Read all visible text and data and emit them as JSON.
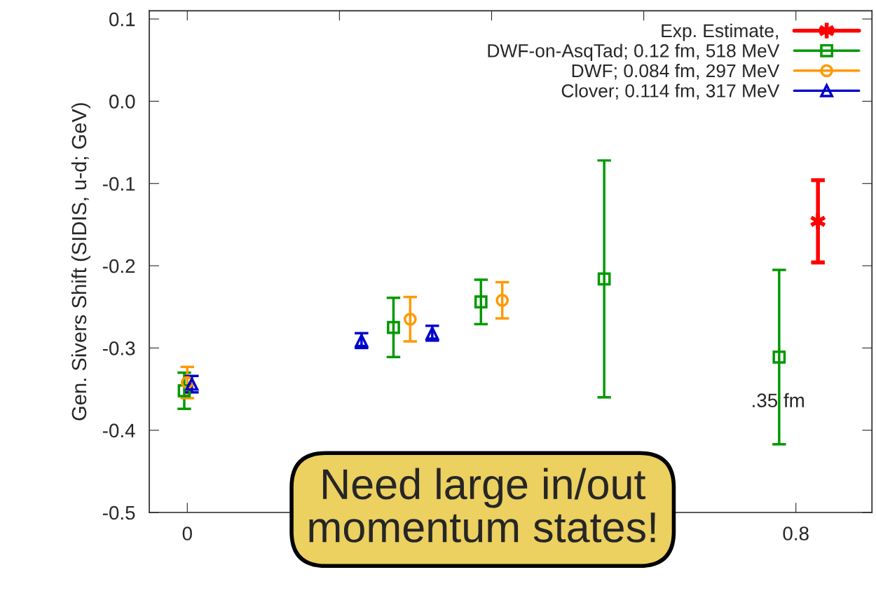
{
  "chart_data": {
    "type": "scatter",
    "ylabel": "Gen. Sivers Shift (SIDIS, u-d; GeV)",
    "xlim": [
      -0.05,
      0.9
    ],
    "ylim": [
      -0.5,
      0.11
    ],
    "xticks": [
      0,
      {
        "value": 0.2,
        "label": null
      },
      {
        "value": 0.4,
        "label": null
      },
      {
        "value": 0.6,
        "label": null
      },
      0.8
    ],
    "yticks": [
      {
        "value": -0.5,
        "label": "-0.5"
      },
      {
        "value": -0.4,
        "label": "-0.4"
      },
      {
        "value": -0.3,
        "label": "-0.3"
      },
      {
        "value": -0.2,
        "label": "-0.2"
      },
      {
        "value": -0.1,
        "label": "-0.1"
      },
      {
        "value": 0.0,
        "label": "0.0"
      },
      {
        "value": 0.1,
        "label": "0.1"
      }
    ],
    "grid": false,
    "legend": "top right",
    "series": [
      {
        "name": "Exp. Estimate,",
        "color": "#ff0000",
        "marker": "cross",
        "x": [
          0.829
        ],
        "values": [
          -0.146
        ],
        "errors": [
          0.05
        ]
      },
      {
        "name": "DWF-on-AsqTad; 0.12 fm, 518 MeV",
        "color": "#009900",
        "marker": "square",
        "x": [
          -0.004,
          0.271,
          0.386,
          0.548,
          0.778
        ],
        "values": [
          -0.352,
          -0.275,
          -0.244,
          -0.216,
          -0.311
        ],
        "errors": [
          0.022,
          0.036,
          0.027,
          0.144,
          0.106
        ]
      },
      {
        "name": "DWF; 0.084 fm, 297 MeV",
        "color": "#ff9900",
        "marker": "circle",
        "x": [
          0.0,
          0.293,
          0.414
        ],
        "values": [
          -0.342,
          -0.265,
          -0.242
        ],
        "errors": [
          0.019,
          0.027,
          0.022
        ]
      },
      {
        "name": "Clover; 0.114 fm, 317 MeV",
        "color": "#0000cc",
        "marker": "triangle",
        "x": [
          0.006,
          0.229,
          0.322
        ],
        "values": [
          -0.344,
          -0.291,
          -0.282
        ],
        "errors": [
          0.01,
          0.009,
          0.009
        ]
      }
    ],
    "annotations": [
      ".35 fm",
      "Need large in/out\nmomentum states!"
    ]
  }
}
